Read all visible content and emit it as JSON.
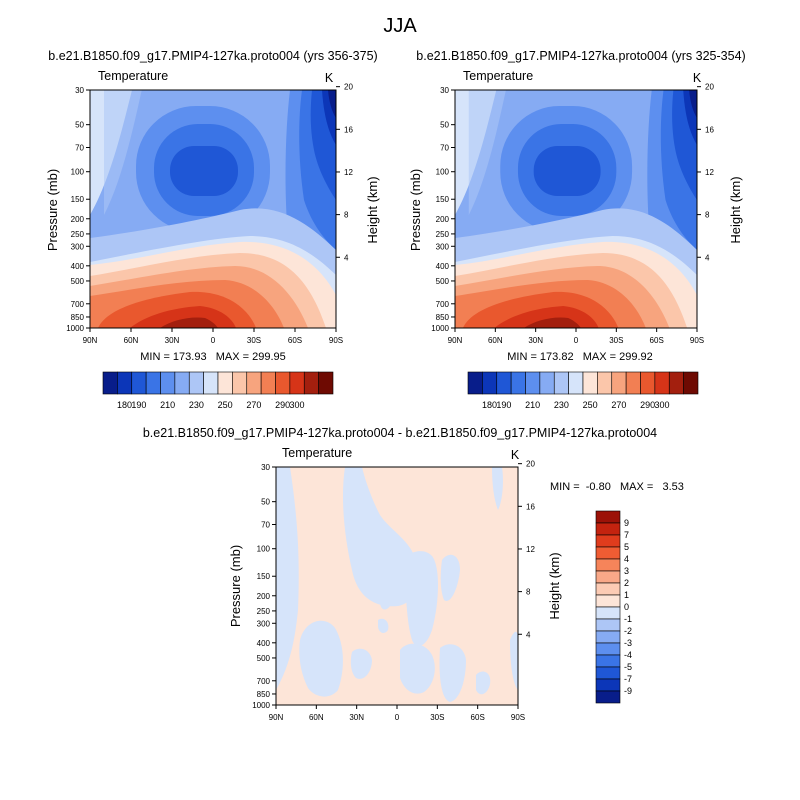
{
  "figure": {
    "title": "JJA"
  },
  "chart_data": [
    {
      "type": "heatmap",
      "id": "panel_left",
      "title": "b.e21.B1850.f09_g17.PMIP4-127ka.proto004 (yrs 356-375)",
      "left_string": "Temperature",
      "right_string": "K",
      "xlabel": "",
      "ylabel": "Pressure (mb)",
      "ylabel_right": "Height (km)",
      "x_ticks": [
        "90N",
        "60N",
        "30N",
        "0",
        "30S",
        "60S",
        "90S"
      ],
      "y_ticks": [
        "30",
        "50",
        "70",
        "100",
        "150",
        "200",
        "250",
        "300",
        "400",
        "500",
        "700",
        "850",
        "1000"
      ],
      "y_ticks_right": [
        "20",
        "16",
        "12",
        "8",
        "4"
      ],
      "stats": "MIN = 173.93   MAX = 299.95",
      "min": 173.93,
      "max": 299.95,
      "colorbar": {
        "orientation": "horizontal",
        "labels": [
          "180",
          "190",
          "210",
          "230",
          "250",
          "270",
          "290",
          "300"
        ],
        "colors": [
          "#081d8a",
          "#0c36b8",
          "#1f57d6",
          "#3a74e6",
          "#5d8fef",
          "#86abf3",
          "#adc6f6",
          "#d6e4fa",
          "#fde5d8",
          "#fbc6aa",
          "#f7a47e",
          "#f27f53",
          "#e9582e",
          "#d63418",
          "#a31f0e",
          "#6e0a02"
        ]
      }
    },
    {
      "type": "heatmap",
      "id": "panel_right",
      "title": "b.e21.B1850.f09_g17.PMIP4-127ka.proto004 (yrs 325-354)",
      "left_string": "Temperature",
      "right_string": "K",
      "xlabel": "",
      "ylabel": "Pressure (mb)",
      "ylabel_right": "Height (km)",
      "x_ticks": [
        "90N",
        "60N",
        "30N",
        "0",
        "30S",
        "60S",
        "90S"
      ],
      "y_ticks": [
        "30",
        "50",
        "70",
        "100",
        "150",
        "200",
        "250",
        "300",
        "400",
        "500",
        "700",
        "850",
        "1000"
      ],
      "y_ticks_right": [
        "20",
        "16",
        "12",
        "8",
        "4"
      ],
      "stats": "MIN = 173.82   MAX = 299.92",
      "min": 173.82,
      "max": 299.92,
      "colorbar": {
        "orientation": "horizontal",
        "labels": [
          "180",
          "190",
          "210",
          "230",
          "250",
          "270",
          "290",
          "300"
        ],
        "colors": [
          "#081d8a",
          "#0c36b8",
          "#1f57d6",
          "#3a74e6",
          "#5d8fef",
          "#86abf3",
          "#adc6f6",
          "#d6e4fa",
          "#fde5d8",
          "#fbc6aa",
          "#f7a47e",
          "#f27f53",
          "#e9582e",
          "#d63418",
          "#a31f0e",
          "#6e0a02"
        ]
      }
    },
    {
      "type": "heatmap",
      "id": "panel_diff",
      "title": "b.e21.B1850.f09_g17.PMIP4-127ka.proto004 - b.e21.B1850.f09_g17.PMIP4-127ka.proto004",
      "left_string": "Temperature",
      "right_string": "K",
      "xlabel": "",
      "ylabel": "Pressure (mb)",
      "ylabel_right": "Height (km)",
      "x_ticks": [
        "90N",
        "60N",
        "30N",
        "0",
        "30S",
        "60S",
        "90S"
      ],
      "y_ticks": [
        "30",
        "50",
        "70",
        "100",
        "150",
        "200",
        "250",
        "300",
        "400",
        "500",
        "700",
        "850",
        "1000"
      ],
      "y_ticks_right": [
        "20",
        "16",
        "12",
        "8",
        "4"
      ],
      "stats": "MIN =  -0.80   MAX =   3.53",
      "min": -0.8,
      "max": 3.53,
      "colorbar": {
        "orientation": "vertical",
        "labels": [
          "9",
          "7",
          "5",
          "4",
          "3",
          "2",
          "1",
          "0",
          "-1",
          "-2",
          "-3",
          "-4",
          "-5",
          "-7",
          "-9"
        ],
        "colors": [
          "#9c1208",
          "#c4230f",
          "#e03c1d",
          "#ef5c33",
          "#f6845a",
          "#f9a888",
          "#fccbb4",
          "#fde5d8",
          "#d6e4fa",
          "#adc6f6",
          "#86abf3",
          "#5d8fef",
          "#3a74e6",
          "#1f57d6",
          "#0c36b8",
          "#081d8a"
        ]
      }
    }
  ]
}
